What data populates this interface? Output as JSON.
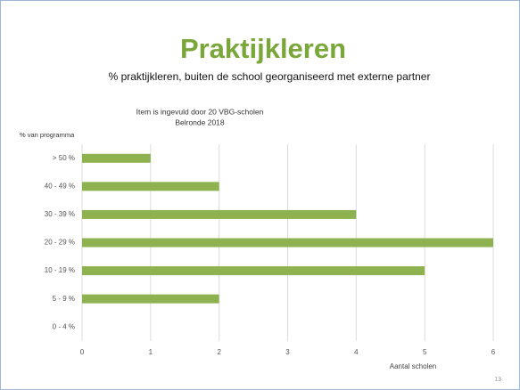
{
  "chart_data": {
    "type": "barh",
    "title": "Praktijkleren",
    "subtitle": "% praktijkleren, buiten de school georganiseerd met externe partner",
    "annotations": [
      "Item is ingevuld door 20 VBG-scholen",
      "Belronde 2018"
    ],
    "y_label": "% van programma",
    "x_label": "Aantal scholen",
    "page_number": "13",
    "categories": [
      "> 50 %",
      "40 - 49 %",
      "30 - 39 %",
      "20 - 29 %",
      "10 - 19 %",
      "5 - 9 %",
      "0 - 4 %"
    ],
    "values": [
      1,
      2,
      4,
      6,
      5,
      2,
      0
    ],
    "color": "#8db24f",
    "xlim": [
      0,
      6
    ],
    "xticks": [
      0,
      1,
      2,
      3,
      4,
      5,
      6
    ],
    "grid": true
  }
}
